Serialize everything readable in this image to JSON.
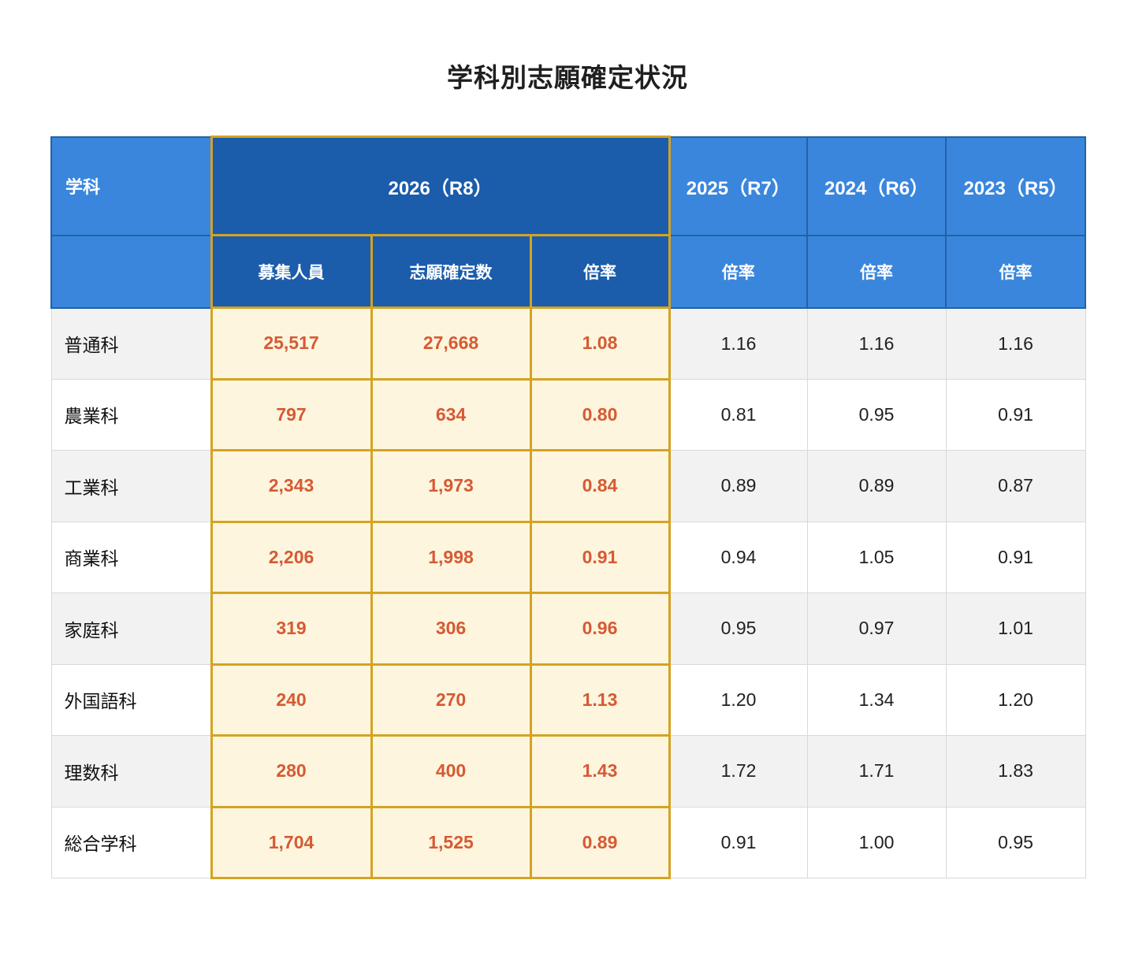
{
  "page": {
    "title": "学科別志願確定状況"
  },
  "colors": {
    "header_light_blue": "#3a86dd",
    "header_dark_blue": "#1b5cab",
    "header_border_blue": "#2263a5",
    "highlight_gold_border": "#d4a322",
    "highlight_cream_bg": "#fdf5de",
    "highlight_orange_text": "#d65a33",
    "stripe_gray": "#f2f2f2",
    "cell_border_gray": "#d9d9d9",
    "text_dark": "#212121"
  },
  "header": {
    "dept": "学科",
    "y2026": "2026（R8）",
    "y2025": "2025（R7）",
    "y2024": "2024（R6）",
    "y2023": "2023（R5）",
    "sub_recruit": "募集人員",
    "sub_confirmed": "志願確定数",
    "sub_ratio_2026": "倍率",
    "sub_ratio_2025": "倍率",
    "sub_ratio_2024": "倍率",
    "sub_ratio_2023": "倍率"
  },
  "chart_data": {
    "type": "table",
    "title": "学科別志願確定状況",
    "column_groups": [
      {
        "label": "学科",
        "highlighted": false,
        "sub_columns": []
      },
      {
        "label": "2026（R8）",
        "highlighted": true,
        "sub_columns": [
          "募集人員",
          "志願確定数",
          "倍率"
        ]
      },
      {
        "label": "2025（R7）",
        "highlighted": false,
        "sub_columns": [
          "倍率"
        ]
      },
      {
        "label": "2024（R6）",
        "highlighted": false,
        "sub_columns": [
          "倍率"
        ]
      },
      {
        "label": "2023（R5）",
        "highlighted": false,
        "sub_columns": [
          "倍率"
        ]
      }
    ],
    "rows": [
      {
        "label": "普通科",
        "values": [
          "25,517",
          "27,668",
          "1.08",
          "1.16",
          "1.16",
          "1.16"
        ]
      },
      {
        "label": "農業科",
        "values": [
          "797",
          "634",
          "0.80",
          "0.81",
          "0.95",
          "0.91"
        ]
      },
      {
        "label": "工業科",
        "values": [
          "2,343",
          "1,973",
          "0.84",
          "0.89",
          "0.89",
          "0.87"
        ]
      },
      {
        "label": "商業科",
        "values": [
          "2,206",
          "1,998",
          "0.91",
          "0.94",
          "1.05",
          "0.91"
        ]
      },
      {
        "label": "家庭科",
        "values": [
          "319",
          "306",
          "0.96",
          "0.95",
          "0.97",
          "1.01"
        ]
      },
      {
        "label": "外国語科",
        "values": [
          "240",
          "270",
          "1.13",
          "1.20",
          "1.34",
          "1.20"
        ]
      },
      {
        "label": "理数科",
        "values": [
          "280",
          "400",
          "1.43",
          "1.72",
          "1.71",
          "1.83"
        ]
      },
      {
        "label": "総合学科",
        "values": [
          "1,704",
          "1,525",
          "0.89",
          "0.91",
          "1.00",
          "0.95"
        ]
      }
    ]
  }
}
